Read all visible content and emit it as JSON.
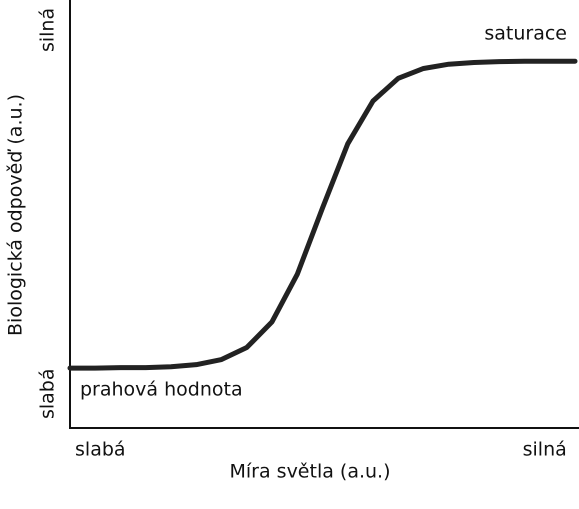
{
  "chart_data": {
    "type": "line",
    "xlabel": "Míra světla (a.u.)",
    "ylabel": "Biologická odpověď (a.u.)",
    "annotations": [
      "saturace",
      "prahová hodnota"
    ],
    "x": [
      0,
      5,
      10,
      15,
      20,
      25,
      30,
      35,
      40,
      45,
      50,
      55,
      60,
      65,
      70,
      75,
      80,
      85,
      90,
      95,
      100
    ],
    "series": [
      {
        "color": "#222222",
        "values": [
          14.0,
          14.0,
          14.1,
          14.1,
          14.3,
          14.8,
          16.0,
          18.8,
          24.8,
          35.9,
          51.4,
          66.4,
          76.4,
          81.7,
          84.0,
          85.0,
          85.4,
          85.6,
          85.7,
          85.7,
          85.7
        ]
      }
    ],
    "xlim": [
      0,
      100
    ],
    "ylim": [
      0,
      100
    ],
    "xticks": [
      {
        "value": 6,
        "label": "slabá"
      },
      {
        "value": 94,
        "label": "silná"
      }
    ],
    "yticks": [
      {
        "value": 8,
        "label": "slabá"
      },
      {
        "value": 93,
        "label": "silná"
      }
    ]
  }
}
